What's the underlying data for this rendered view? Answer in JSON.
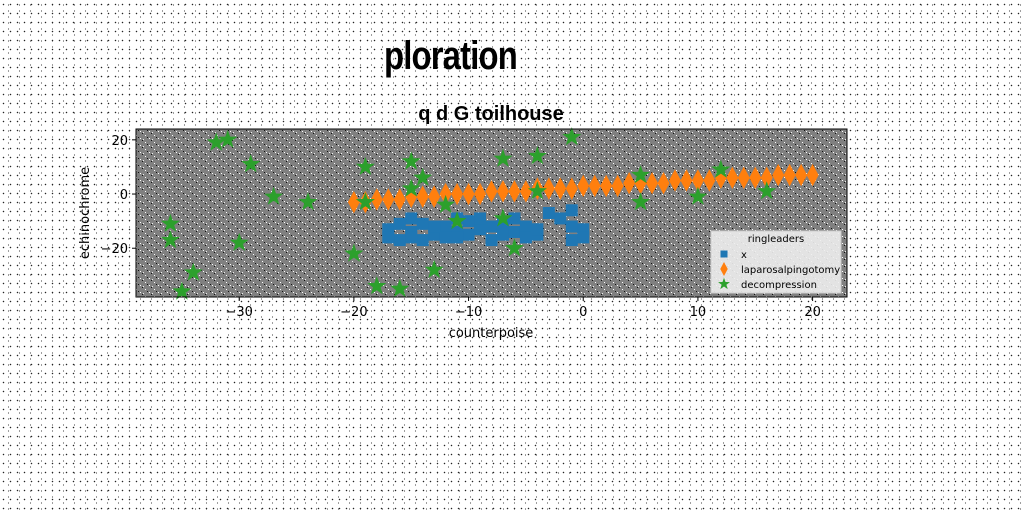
{
  "suptitle": "ploration",
  "chart_data": {
    "type": "scatter",
    "title": "q d G toilhouse",
    "xlabel": "counterpoise",
    "ylabel": "echinochrome",
    "xlim": [
      -39,
      23
    ],
    "ylim": [
      -38,
      24
    ],
    "xticks": [
      -30,
      -20,
      -10,
      0,
      10,
      20
    ],
    "yticks": [
      -20,
      0,
      20
    ],
    "xtick_labels": [
      "−30",
      "−20",
      "−10",
      "0",
      "10",
      "20"
    ],
    "ytick_labels": [
      "−20",
      "0",
      "20"
    ],
    "grid": false,
    "legend": {
      "title": "ringleaders",
      "position": "lower-right"
    },
    "series": [
      {
        "name": "x",
        "marker": "square",
        "color": "#1f77b4",
        "points": [
          [
            -17,
            -13
          ],
          [
            -15,
            -14
          ],
          [
            -16,
            -17
          ],
          [
            -14,
            -11
          ],
          [
            -13,
            -15
          ],
          [
            -12,
            -12
          ],
          [
            -11,
            -14
          ],
          [
            -10,
            -10
          ],
          [
            -9,
            -13
          ],
          [
            -8,
            -17
          ],
          [
            -7,
            -11
          ],
          [
            -6,
            -14
          ],
          [
            -5,
            -12
          ],
          [
            -4,
            -15
          ],
          [
            -14,
            -17
          ],
          [
            -12,
            -16
          ],
          [
            -10,
            -15
          ],
          [
            -8,
            -12
          ],
          [
            -6,
            -9
          ],
          [
            -5,
            -16
          ],
          [
            -3,
            -7
          ],
          [
            -2,
            -9
          ],
          [
            -1,
            -6
          ],
          [
            -1,
            -12
          ],
          [
            0,
            -13
          ],
          [
            0,
            -16
          ],
          [
            -16,
            -11
          ],
          [
            -17,
            -16
          ],
          [
            -11,
            -9
          ],
          [
            -9,
            -9
          ],
          [
            -13,
            -12
          ],
          [
            -15,
            -16
          ],
          [
            -11,
            -16
          ],
          [
            -7,
            -15
          ],
          [
            -4,
            -13
          ],
          [
            -1,
            -17
          ],
          [
            -15,
            -9
          ]
        ]
      },
      {
        "name": "laparosalpingotomy",
        "marker": "diamond",
        "color": "#ff7f0e",
        "points": [
          [
            -20,
            -3
          ],
          [
            -19,
            -3
          ],
          [
            -18,
            -2
          ],
          [
            -17,
            -2
          ],
          [
            -16,
            -2
          ],
          [
            -15,
            -1
          ],
          [
            -14,
            -1
          ],
          [
            -13,
            -1
          ],
          [
            -12,
            0
          ],
          [
            -11,
            0
          ],
          [
            -10,
            0
          ],
          [
            -9,
            0
          ],
          [
            -8,
            1
          ],
          [
            -7,
            1
          ],
          [
            -6,
            1
          ],
          [
            -5,
            1
          ],
          [
            -4,
            2
          ],
          [
            -3,
            2
          ],
          [
            -2,
            2
          ],
          [
            -1,
            2
          ],
          [
            0,
            3
          ],
          [
            1,
            3
          ],
          [
            2,
            3
          ],
          [
            3,
            3
          ],
          [
            4,
            4
          ],
          [
            5,
            4
          ],
          [
            6,
            4
          ],
          [
            7,
            4
          ],
          [
            8,
            5
          ],
          [
            9,
            5
          ],
          [
            10,
            5
          ],
          [
            11,
            5
          ],
          [
            12,
            6
          ],
          [
            13,
            6
          ],
          [
            14,
            6
          ],
          [
            15,
            6
          ],
          [
            16,
            6
          ],
          [
            17,
            7
          ],
          [
            18,
            7
          ],
          [
            19,
            7
          ],
          [
            20,
            7
          ]
        ]
      },
      {
        "name": "decompression",
        "marker": "star",
        "color": "#2ca02c",
        "points": [
          [
            -36,
            -11
          ],
          [
            -36,
            -17
          ],
          [
            -35,
            -36
          ],
          [
            -34,
            -29
          ],
          [
            -32,
            19
          ],
          [
            -31,
            20
          ],
          [
            -30,
            -18
          ],
          [
            -29,
            11
          ],
          [
            -27,
            -1
          ],
          [
            -24,
            -3
          ],
          [
            -20,
            -22
          ],
          [
            -19,
            10
          ],
          [
            -19,
            -3
          ],
          [
            -18,
            -34
          ],
          [
            -16,
            -35
          ],
          [
            -15,
            12
          ],
          [
            -15,
            2
          ],
          [
            -14,
            6
          ],
          [
            -13,
            -28
          ],
          [
            -12,
            -4
          ],
          [
            -11,
            -10
          ],
          [
            -7,
            13
          ],
          [
            -7,
            -9
          ],
          [
            -6,
            -20
          ],
          [
            -4,
            14
          ],
          [
            -4,
            1
          ],
          [
            -1,
            21
          ],
          [
            5,
            7
          ],
          [
            5,
            -3
          ],
          [
            10,
            -1
          ],
          [
            12,
            9
          ],
          [
            16,
            1
          ]
        ]
      }
    ]
  }
}
